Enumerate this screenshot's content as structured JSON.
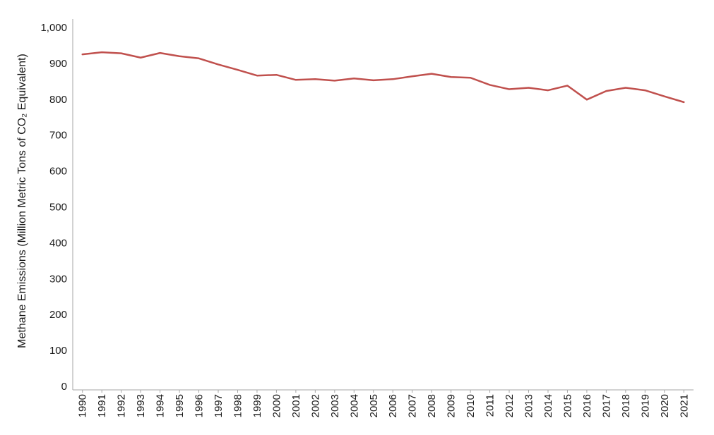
{
  "chart_data": {
    "type": "line",
    "title": "",
    "xlabel": "",
    "ylabel": "Methane Emissions (Million Metric Tons of CO₂ Equivalent)",
    "ylim": [
      0,
      1000
    ],
    "yticks": [
      0,
      100,
      200,
      300,
      400,
      500,
      600,
      700,
      800,
      900,
      1000
    ],
    "ytick_labels": [
      "0",
      "100",
      "200",
      "300",
      "400",
      "500",
      "600",
      "700",
      "800",
      "900",
      "1,000"
    ],
    "x": [
      "1990",
      "1991",
      "1992",
      "1993",
      "1994",
      "1995",
      "1996",
      "1997",
      "1998",
      "1999",
      "2000",
      "2001",
      "2002",
      "2003",
      "2004",
      "2005",
      "2006",
      "2007",
      "2008",
      "2009",
      "2010",
      "2011",
      "2012",
      "2013",
      "2014",
      "2015",
      "2016",
      "2017",
      "2018",
      "2019",
      "2020",
      "2021"
    ],
    "series": [
      {
        "color": "#c0504d",
        "values": [
          925,
          931,
          928,
          916,
          929,
          920,
          914,
          897,
          882,
          866,
          868,
          854,
          856,
          852,
          858,
          853,
          856,
          864,
          871,
          862,
          860,
          840,
          828,
          832,
          825,
          838,
          799,
          823,
          832,
          825,
          808,
          792
        ]
      }
    ],
    "grid": false,
    "legend": "none"
  }
}
